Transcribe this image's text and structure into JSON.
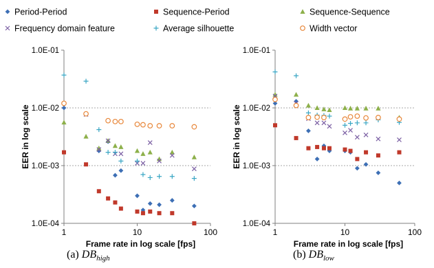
{
  "legend": {
    "entries": [
      {
        "label": "Period-Period",
        "marker": "diamond",
        "color": "#3d6fb5"
      },
      {
        "label": "Sequence-Period",
        "marker": "square",
        "color": "#c0392b"
      },
      {
        "label": "Sequence-Sequence",
        "marker": "triangle",
        "color": "#8db04a"
      },
      {
        "label": "Frequency domain feature",
        "marker": "x",
        "color": "#7b5fa3"
      },
      {
        "label": "Average silhouette",
        "marker": "plus",
        "color": "#3aa6c4"
      },
      {
        "label": "Width vector",
        "marker": "circle",
        "color": "#e8873a"
      }
    ]
  },
  "captions": {
    "left": {
      "prefix": "(a) ",
      "main": "DB",
      "sub": "high"
    },
    "right": {
      "prefix": "(b) ",
      "main": "DB",
      "sub": "low"
    }
  },
  "chart_data": [
    {
      "type": "scatter",
      "xscale": "log",
      "yscale": "log",
      "xlim": [
        1,
        100
      ],
      "ylim": [
        0.0001,
        0.1
      ],
      "xticks": [
        "1",
        "10",
        "100"
      ],
      "yticks": [
        "1.0E-04",
        "1.0E-03",
        "1.0E-02",
        "1.0E-01"
      ],
      "xlabel": "Frame rate in log scale [fps]",
      "ylabel": "EER in log scale",
      "grid": "horizontal dashed at 1.0E-03 and 1.0E-02",
      "series": [
        {
          "name": "Period-Period",
          "marker": "diamond",
          "color": "#3d6fb5",
          "x": [
            1,
            2,
            3,
            4,
            5,
            6,
            10,
            12,
            15,
            20,
            30,
            60
          ],
          "y": [
            0.01,
            0.0078,
            0.0018,
            0.0026,
            0.00068,
            0.00082,
            0.0003,
            0.00017,
            0.00022,
            0.00021,
            0.00025,
            0.0002
          ]
        },
        {
          "name": "Sequence-Period",
          "marker": "square",
          "color": "#c0392b",
          "x": [
            1,
            2,
            3,
            4,
            5,
            6,
            10,
            12,
            15,
            20,
            30,
            60
          ],
          "y": [
            0.0017,
            0.00105,
            0.00036,
            0.00027,
            0.00023,
            0.00018,
            0.00016,
            0.00015,
            0.00016,
            0.00015,
            0.00015,
            0.0001
          ]
        },
        {
          "name": "Sequence-Sequence",
          "marker": "triangle",
          "color": "#8db04a",
          "x": [
            1,
            2,
            3,
            4,
            5,
            6,
            10,
            12,
            15,
            20,
            30,
            60
          ],
          "y": [
            0.0056,
            0.0032,
            0.002,
            0.0027,
            0.0022,
            0.0021,
            0.0018,
            0.0016,
            0.0017,
            0.0013,
            0.0017,
            0.0014
          ]
        },
        {
          "name": "Frequency domain feature",
          "marker": "x",
          "color": "#7b5fa3",
          "x": [
            2,
            3,
            4,
            5,
            6,
            10,
            12,
            15,
            20,
            30,
            60
          ],
          "y": [
            0.0077,
            0.0019,
            0.0027,
            0.0016,
            0.0016,
            0.0011,
            0.0011,
            0.0025,
            0.0012,
            0.0015,
            0.00088
          ]
        },
        {
          "name": "Average silhouette",
          "marker": "plus",
          "color": "#3aa6c4",
          "x": [
            1,
            2,
            3,
            4,
            5,
            6,
            10,
            12,
            15,
            20,
            30,
            60
          ],
          "y": [
            0.037,
            0.029,
            0.0042,
            0.0017,
            0.0017,
            0.0012,
            0.0012,
            0.0007,
            0.00062,
            0.00065,
            0.00065,
            0.0006
          ]
        },
        {
          "name": "Width vector",
          "marker": "circle",
          "color": "#e8873a",
          "x": [
            1,
            2,
            4,
            5,
            6,
            10,
            12,
            15,
            20,
            30,
            60
          ],
          "y": [
            0.012,
            0.0079,
            0.006,
            0.0058,
            0.0058,
            0.0052,
            0.0051,
            0.0049,
            0.0049,
            0.0049,
            0.0047
          ]
        }
      ]
    },
    {
      "type": "scatter",
      "xscale": "log",
      "yscale": "log",
      "xlim": [
        1,
        100
      ],
      "ylim": [
        0.0001,
        0.1
      ],
      "xticks": [
        "1",
        "10",
        "100"
      ],
      "yticks": [
        "1.0E-04",
        "1.0E-03",
        "1.0E-02",
        "1.0E-01"
      ],
      "xlabel": "Frame rate in log scale [fps]",
      "ylabel": "EER in log scale",
      "grid": "horizontal dashed at 1.0E-03 and 1.0E-02",
      "series": [
        {
          "name": "Period-Period",
          "marker": "diamond",
          "color": "#3d6fb5",
          "x": [
            1,
            2,
            3,
            4,
            5,
            6,
            10,
            12,
            15,
            20,
            30,
            60
          ],
          "y": [
            0.012,
            0.013,
            0.004,
            0.0013,
            0.0022,
            0.0018,
            0.0018,
            0.0017,
            0.0009,
            0.00105,
            0.00075,
            0.0005
          ]
        },
        {
          "name": "Sequence-Period",
          "marker": "square",
          "color": "#c0392b",
          "x": [
            1,
            2,
            3,
            4,
            5,
            6,
            10,
            12,
            15,
            20,
            30,
            60
          ],
          "y": [
            0.005,
            0.003,
            0.002,
            0.0021,
            0.002,
            0.002,
            0.0019,
            0.0018,
            0.0013,
            0.0017,
            0.0015,
            0.0017
          ]
        },
        {
          "name": "Sequence-Sequence",
          "marker": "triangle",
          "color": "#8db04a",
          "x": [
            1,
            2,
            3,
            4,
            5,
            6,
            10,
            12,
            15,
            20,
            30,
            60
          ],
          "y": [
            0.017,
            0.017,
            0.011,
            0.01,
            0.0095,
            0.0092,
            0.01,
            0.0098,
            0.0098,
            0.0098,
            0.0098,
            0.0068
          ]
        },
        {
          "name": "Frequency domain feature",
          "marker": "x",
          "color": "#7b5fa3",
          "x": [
            1,
            2,
            3,
            4,
            5,
            6,
            10,
            12,
            15,
            20,
            30,
            60
          ],
          "y": [
            0.016,
            0.012,
            0.0065,
            0.0055,
            0.0055,
            0.0048,
            0.0037,
            0.0041,
            0.0031,
            0.0034,
            0.0029,
            0.0028
          ]
        },
        {
          "name": "Average silhouette",
          "marker": "plus",
          "color": "#3aa6c4",
          "x": [
            1,
            2,
            3,
            4,
            5,
            6,
            10,
            12,
            15,
            20,
            30,
            60
          ],
          "y": [
            0.042,
            0.036,
            0.0082,
            0.0075,
            0.0074,
            0.0072,
            0.005,
            0.0054,
            0.0055,
            0.0055,
            0.0062,
            0.0056
          ]
        },
        {
          "name": "Width vector",
          "marker": "circle",
          "color": "#e8873a",
          "x": [
            1,
            2,
            3,
            4,
            5,
            10,
            12,
            15,
            20,
            30,
            60
          ],
          "y": [
            0.014,
            0.011,
            0.0068,
            0.0069,
            0.0068,
            0.0064,
            0.007,
            0.0072,
            0.0067,
            0.0068,
            0.0064
          ]
        }
      ]
    }
  ]
}
